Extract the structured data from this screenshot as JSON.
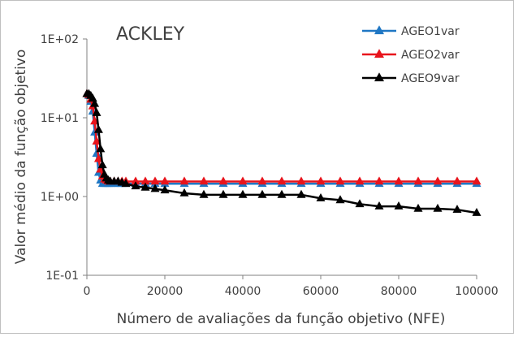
{
  "chart_data": {
    "type": "line",
    "title": "ACKLEY",
    "xlabel": "Número de avaliações da função objetivo (NFE)",
    "ylabel": "Valor médio da função objetivo",
    "xlim": [
      0,
      100000
    ],
    "ylim": [
      0.1,
      100
    ],
    "yscale": "log",
    "x_ticks": [
      0,
      20000,
      40000,
      60000,
      80000,
      100000
    ],
    "x_tick_labels": [
      "0",
      "20000",
      "40000",
      "60000",
      "80000",
      "100000"
    ],
    "y_ticks": [
      0.1,
      1,
      10,
      100
    ],
    "y_tick_labels": [
      "1E-01",
      "1E+00",
      "1E+01",
      "1E+02"
    ],
    "grid": false,
    "legend_position": "top-right",
    "series": [
      {
        "name": "AGEO1var",
        "color": "#1f77c4",
        "marker": "triangle",
        "x": [
          0,
          500,
          1000,
          1500,
          2000,
          2500,
          3000,
          3500,
          4000,
          4500,
          5000,
          5500,
          6000,
          7000,
          8000,
          9000,
          10000,
          12500,
          15000,
          17500,
          20000,
          25000,
          30000,
          35000,
          40000,
          45000,
          50000,
          55000,
          60000,
          65000,
          70000,
          75000,
          80000,
          85000,
          90000,
          95000,
          100000
        ],
        "y": [
          20,
          19,
          16,
          12,
          6.5,
          3.5,
          2.0,
          1.6,
          1.45,
          1.45,
          1.45,
          1.45,
          1.45,
          1.45,
          1.45,
          1.45,
          1.45,
          1.45,
          1.45,
          1.45,
          1.45,
          1.45,
          1.45,
          1.45,
          1.45,
          1.45,
          1.45,
          1.45,
          1.45,
          1.45,
          1.45,
          1.45,
          1.45,
          1.45,
          1.45,
          1.45,
          1.45
        ]
      },
      {
        "name": "AGEO2var",
        "color": "#e8141c",
        "marker": "triangle",
        "x": [
          0,
          500,
          1000,
          1500,
          2000,
          2500,
          3000,
          3500,
          4000,
          4500,
          5000,
          5500,
          6000,
          7000,
          8000,
          9000,
          10000,
          12500,
          15000,
          17500,
          20000,
          25000,
          30000,
          35000,
          40000,
          45000,
          50000,
          55000,
          60000,
          65000,
          70000,
          75000,
          80000,
          85000,
          90000,
          95000,
          100000
        ],
        "y": [
          20,
          19.5,
          17,
          14,
          9,
          5,
          3,
          2.2,
          1.8,
          1.65,
          1.6,
          1.55,
          1.55,
          1.55,
          1.55,
          1.55,
          1.55,
          1.55,
          1.55,
          1.55,
          1.55,
          1.55,
          1.55,
          1.55,
          1.55,
          1.55,
          1.55,
          1.55,
          1.55,
          1.55,
          1.55,
          1.55,
          1.55,
          1.55,
          1.55,
          1.55,
          1.55
        ]
      },
      {
        "name": "AGEO9var",
        "color": "#000000",
        "marker": "triangle",
        "x": [
          0,
          500,
          1000,
          1500,
          2000,
          2500,
          3000,
          3500,
          4000,
          4500,
          5000,
          5500,
          6000,
          7000,
          8000,
          9000,
          10000,
          12500,
          15000,
          17500,
          20000,
          25000,
          30000,
          35000,
          40000,
          45000,
          50000,
          55000,
          60000,
          65000,
          70000,
          75000,
          80000,
          85000,
          90000,
          95000,
          100000
        ],
        "y": [
          20,
          20,
          19,
          17.5,
          15,
          11.5,
          7,
          4,
          2.5,
          1.9,
          1.7,
          1.6,
          1.55,
          1.55,
          1.55,
          1.5,
          1.45,
          1.35,
          1.3,
          1.25,
          1.2,
          1.1,
          1.05,
          1.05,
          1.05,
          1.05,
          1.05,
          1.05,
          0.95,
          0.9,
          0.8,
          0.75,
          0.75,
          0.7,
          0.7,
          0.68,
          0.62
        ]
      }
    ]
  }
}
